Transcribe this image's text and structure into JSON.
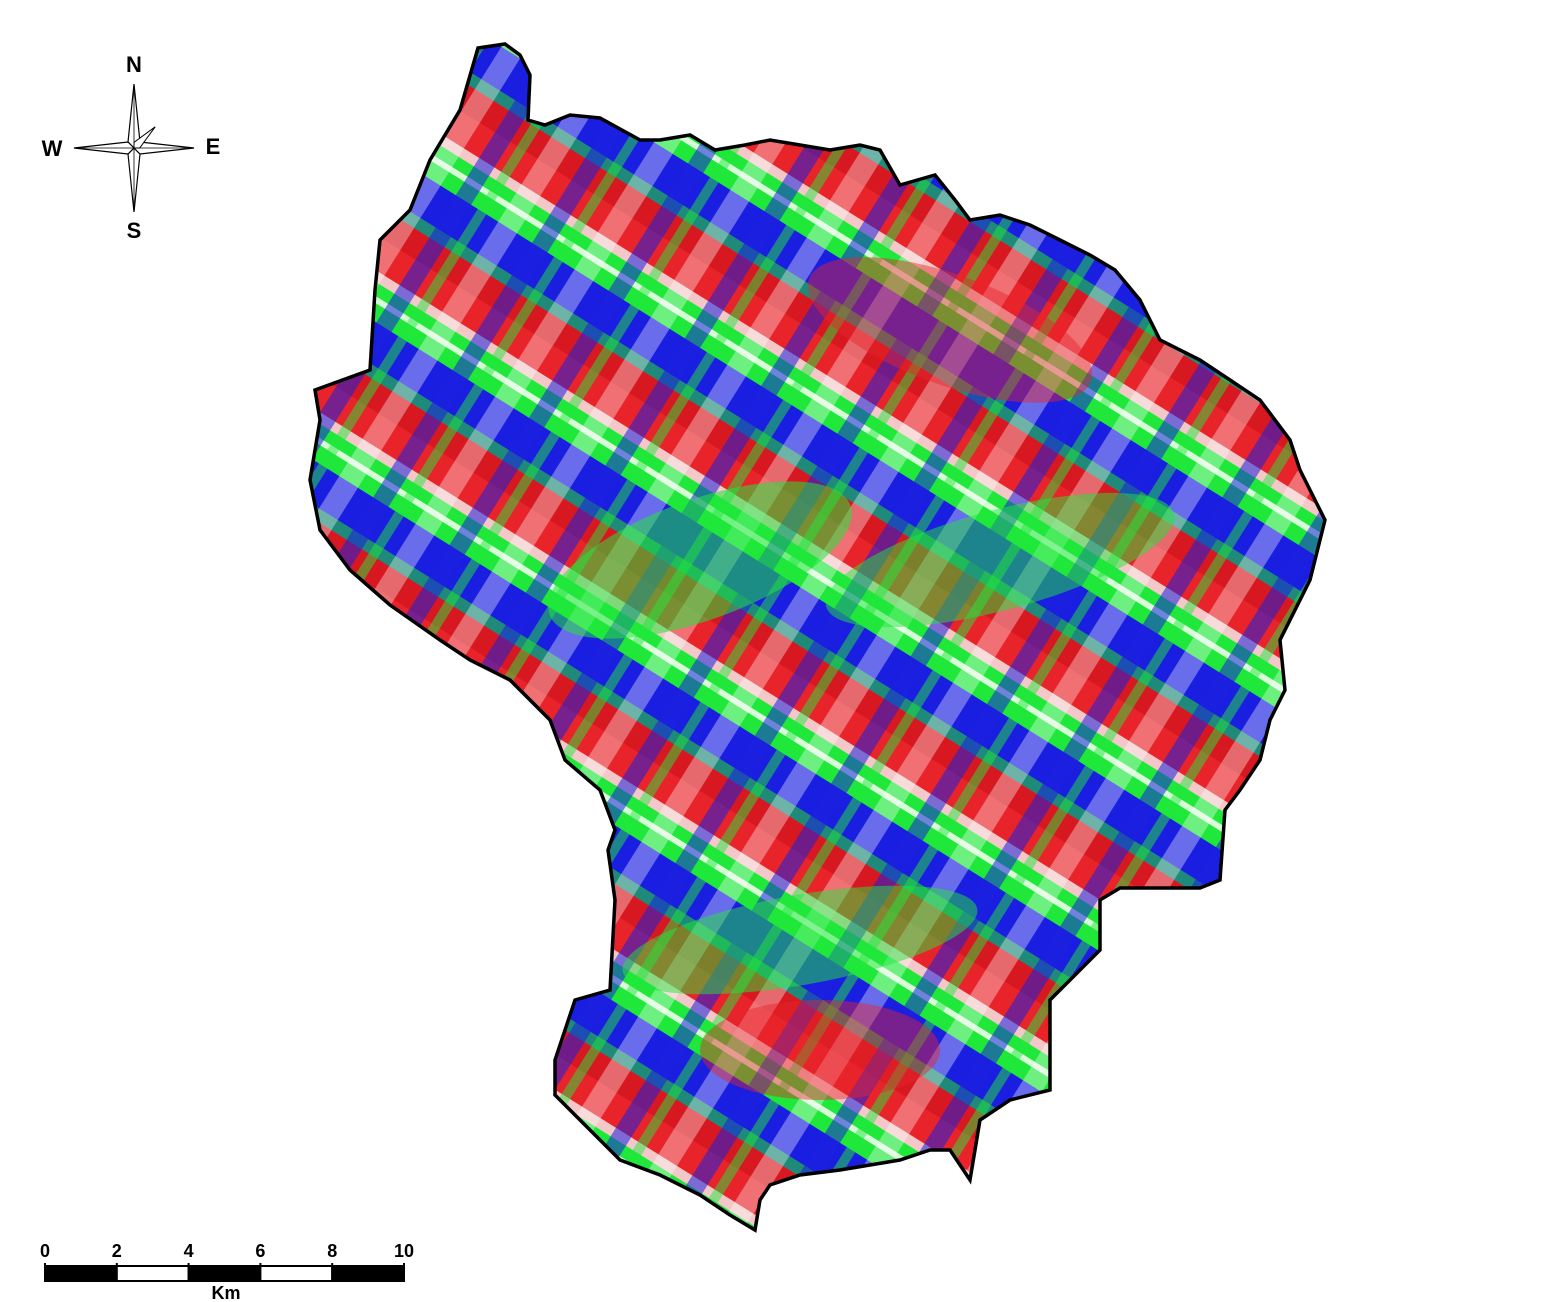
{
  "compass": {
    "north": "N",
    "south": "S",
    "east": "E",
    "west": "W"
  },
  "scale_bar": {
    "ticks": [
      0,
      2,
      4,
      6,
      8,
      10
    ],
    "unit": "Km"
  }
}
